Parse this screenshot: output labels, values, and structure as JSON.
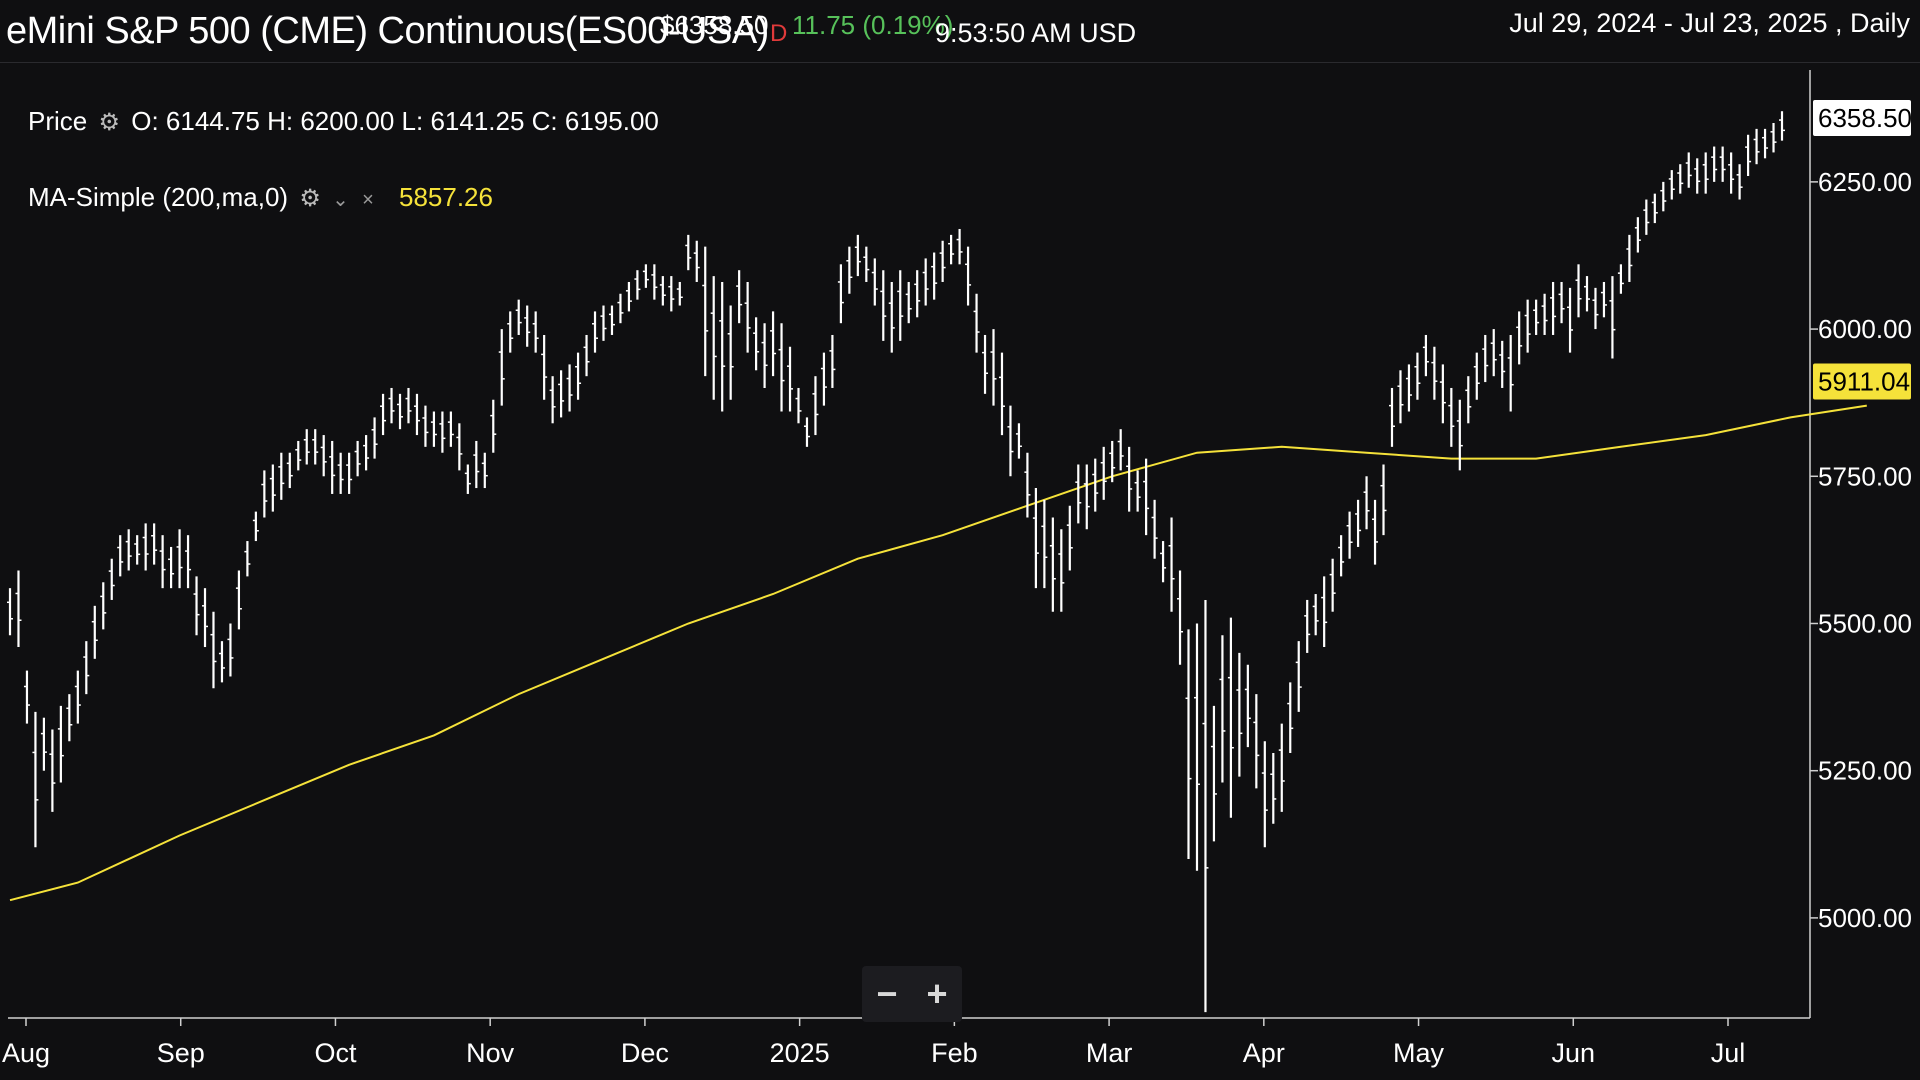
{
  "header": {
    "title": "eMini S&P 500 (CME) Continuous(ES00-USA)",
    "last_price": "$6358.50",
    "flag": "D",
    "change": "11.75 (0.19%)",
    "time": "9:53:50 AM USD",
    "date_range": "Jul 29, 2024 - Jul 23, 2025 , Daily"
  },
  "legend": {
    "price_label": "Price",
    "ohlc": "O: 6144.75 H: 6200.00 L: 6141.25 C: 6195.00",
    "ma_label": "MA-Simple (200,ma,0)",
    "ma_value": "5857.26",
    "ma_arrow": "⌄",
    "ma_close": "×"
  },
  "icons": {
    "gear": "gear-icon",
    "minus": "zoom-out-icon",
    "plus": "zoom-in-icon"
  },
  "zoom": {
    "minus": "−",
    "plus": "+"
  },
  "colors": {
    "background": "#0f0f11",
    "bars": "#ffffff",
    "ma": "#f5e23a",
    "up": "#57c15a",
    "down": "#e03a3a"
  },
  "chart_data": {
    "type": "ohlc",
    "title": "eMini S&P 500 (CME) Continuous(ES00-USA)",
    "frequency": "Daily",
    "x_labels": [
      "Aug",
      "Sep",
      "Oct",
      "Nov",
      "Dec",
      "2025",
      "Feb",
      "Mar",
      "Apr",
      "May",
      "Jun",
      "Jul"
    ],
    "y_ticks": [
      5000,
      5250,
      5500,
      5750,
      6000,
      6250
    ],
    "y_tick_labels": [
      "5000.00",
      "5250.00",
      "5500.00",
      "5750.00",
      "6000.00",
      "6250.00"
    ],
    "ylim": [
      4830,
      6440
    ],
    "last_price_label": "6358.50",
    "ma_price_label": "5911.04",
    "bars_high_low": [
      [
        5560,
        5480
      ],
      [
        5590,
        5460
      ],
      [
        5420,
        5330
      ],
      [
        5350,
        5120
      ],
      [
        5340,
        5250
      ],
      [
        5320,
        5180
      ],
      [
        5360,
        5230
      ],
      [
        5380,
        5300
      ],
      [
        5420,
        5330
      ],
      [
        5470,
        5380
      ],
      [
        5530,
        5440
      ],
      [
        5570,
        5490
      ],
      [
        5610,
        5540
      ],
      [
        5650,
        5580
      ],
      [
        5660,
        5590
      ],
      [
        5650,
        5600
      ],
      [
        5670,
        5590
      ],
      [
        5670,
        5600
      ],
      [
        5650,
        5560
      ],
      [
        5630,
        5560
      ],
      [
        5660,
        5560
      ],
      [
        5650,
        5560
      ],
      [
        5580,
        5480
      ],
      [
        5560,
        5460
      ],
      [
        5520,
        5390
      ],
      [
        5470,
        5400
      ],
      [
        5500,
        5410
      ],
      [
        5590,
        5490
      ],
      [
        5640,
        5580
      ],
      [
        5690,
        5640
      ],
      [
        5760,
        5680
      ],
      [
        5770,
        5690
      ],
      [
        5790,
        5710
      ],
      [
        5790,
        5730
      ],
      [
        5810,
        5760
      ],
      [
        5830,
        5770
      ],
      [
        5830,
        5770
      ],
      [
        5820,
        5750
      ],
      [
        5810,
        5720
      ],
      [
        5790,
        5720
      ],
      [
        5790,
        5720
      ],
      [
        5810,
        5750
      ],
      [
        5820,
        5760
      ],
      [
        5850,
        5780
      ],
      [
        5890,
        5820
      ],
      [
        5900,
        5840
      ],
      [
        5890,
        5830
      ],
      [
        5900,
        5840
      ],
      [
        5890,
        5820
      ],
      [
        5870,
        5800
      ],
      [
        5860,
        5800
      ],
      [
        5860,
        5790
      ],
      [
        5860,
        5800
      ],
      [
        5840,
        5760
      ],
      [
        5770,
        5720
      ],
      [
        5810,
        5730
      ],
      [
        5790,
        5730
      ],
      [
        5880,
        5790
      ],
      [
        6000,
        5870
      ],
      [
        6030,
        5960
      ],
      [
        6050,
        5990
      ],
      [
        6040,
        5970
      ],
      [
        6030,
        5960
      ],
      [
        5990,
        5880
      ],
      [
        5920,
        5840
      ],
      [
        5930,
        5850
      ],
      [
        5940,
        5860
      ],
      [
        5960,
        5880
      ],
      [
        5990,
        5920
      ],
      [
        6030,
        5960
      ],
      [
        6040,
        5980
      ],
      [
        6040,
        5990
      ],
      [
        6060,
        6010
      ],
      [
        6080,
        6030
      ],
      [
        6100,
        6050
      ],
      [
        6110,
        6070
      ],
      [
        6110,
        6050
      ],
      [
        6090,
        6040
      ],
      [
        6090,
        6030
      ],
      [
        6080,
        6040
      ],
      [
        6160,
        6100
      ],
      [
        6150,
        6080
      ],
      [
        6140,
        5920
      ],
      [
        6090,
        5880
      ],
      [
        6080,
        5860
      ],
      [
        6040,
        5880
      ],
      [
        6100,
        6010
      ],
      [
        6080,
        5960
      ],
      [
        6020,
        5930
      ],
      [
        6010,
        5900
      ],
      [
        6030,
        5920
      ],
      [
        6010,
        5860
      ],
      [
        5970,
        5860
      ],
      [
        5900,
        5840
      ],
      [
        5850,
        5800
      ],
      [
        5920,
        5820
      ],
      [
        5960,
        5870
      ],
      [
        5990,
        5900
      ],
      [
        6110,
        6010
      ],
      [
        6140,
        6060
      ],
      [
        6160,
        6090
      ],
      [
        6140,
        6080
      ],
      [
        6120,
        6040
      ],
      [
        6100,
        5980
      ],
      [
        6080,
        5960
      ],
      [
        6100,
        5980
      ],
      [
        6080,
        6010
      ],
      [
        6100,
        6020
      ],
      [
        6120,
        6040
      ],
      [
        6130,
        6050
      ],
      [
        6150,
        6080
      ],
      [
        6160,
        6110
      ],
      [
        6170,
        6110
      ],
      [
        6140,
        6040
      ],
      [
        6060,
        5960
      ],
      [
        5990,
        5890
      ],
      [
        6000,
        5870
      ],
      [
        5960,
        5820
      ],
      [
        5870,
        5750
      ],
      [
        5840,
        5780
      ],
      [
        5790,
        5680
      ],
      [
        5730,
        5560
      ],
      [
        5710,
        5560
      ],
      [
        5680,
        5520
      ],
      [
        5660,
        5520
      ],
      [
        5700,
        5590
      ],
      [
        5770,
        5670
      ],
      [
        5770,
        5660
      ],
      [
        5780,
        5690
      ],
      [
        5800,
        5710
      ],
      [
        5810,
        5740
      ],
      [
        5830,
        5760
      ],
      [
        5800,
        5690
      ],
      [
        5760,
        5690
      ],
      [
        5780,
        5650
      ],
      [
        5710,
        5610
      ],
      [
        5640,
        5570
      ],
      [
        5680,
        5520
      ],
      [
        5590,
        5430
      ],
      [
        5490,
        5100
      ],
      [
        5500,
        5080
      ],
      [
        5540,
        4840
      ],
      [
        5360,
        5130
      ],
      [
        5480,
        5230
      ],
      [
        5510,
        5170
      ],
      [
        5450,
        5240
      ],
      [
        5430,
        5290
      ],
      [
        5380,
        5220
      ],
      [
        5300,
        5120
      ],
      [
        5280,
        5160
      ],
      [
        5330,
        5180
      ],
      [
        5400,
        5280
      ],
      [
        5470,
        5350
      ],
      [
        5540,
        5450
      ],
      [
        5550,
        5480
      ],
      [
        5580,
        5460
      ],
      [
        5610,
        5520
      ],
      [
        5650,
        5580
      ],
      [
        5690,
        5610
      ],
      [
        5710,
        5630
      ],
      [
        5750,
        5660
      ],
      [
        5710,
        5600
      ],
      [
        5770,
        5650
      ],
      [
        5900,
        5800
      ],
      [
        5930,
        5840
      ],
      [
        5940,
        5860
      ],
      [
        5960,
        5880
      ],
      [
        5990,
        5920
      ],
      [
        5970,
        5880
      ],
      [
        5940,
        5840
      ],
      [
        5900,
        5800
      ],
      [
        5880,
        5760
      ],
      [
        5920,
        5840
      ],
      [
        5960,
        5880
      ],
      [
        5990,
        5910
      ],
      [
        6000,
        5920
      ],
      [
        5980,
        5900
      ],
      [
        5990,
        5860
      ],
      [
        6030,
        5940
      ],
      [
        6050,
        5960
      ],
      [
        6050,
        5990
      ],
      [
        6060,
        5990
      ],
      [
        6080,
        5990
      ],
      [
        6080,
        6010
      ],
      [
        6070,
        5960
      ],
      [
        6110,
        6020
      ],
      [
        6090,
        6030
      ],
      [
        6070,
        6000
      ],
      [
        6080,
        6020
      ],
      [
        6090,
        5950
      ],
      [
        6110,
        6060
      ],
      [
        6160,
        6080
      ],
      [
        6190,
        6130
      ],
      [
        6220,
        6160
      ],
      [
        6230,
        6180
      ],
      [
        6250,
        6200
      ],
      [
        6270,
        6220
      ],
      [
        6280,
        6230
      ],
      [
        6300,
        6240
      ],
      [
        6290,
        6230
      ],
      [
        6300,
        6230
      ],
      [
        6310,
        6250
      ],
      [
        6310,
        6250
      ],
      [
        6300,
        6230
      ],
      [
        6280,
        6220
      ],
      [
        6330,
        6260
      ],
      [
        6340,
        6280
      ],
      [
        6340,
        6290
      ],
      [
        6350,
        6300
      ],
      [
        6370,
        6320
      ]
    ],
    "ma_200": [
      [
        0,
        5030
      ],
      [
        8,
        5060
      ],
      [
        20,
        5140
      ],
      [
        30,
        5200
      ],
      [
        40,
        5260
      ],
      [
        50,
        5310
      ],
      [
        60,
        5380
      ],
      [
        70,
        5440
      ],
      [
        80,
        5500
      ],
      [
        90,
        5550
      ],
      [
        100,
        5610
      ],
      [
        110,
        5650
      ],
      [
        120,
        5700
      ],
      [
        130,
        5750
      ],
      [
        140,
        5790
      ],
      [
        150,
        5800
      ],
      [
        160,
        5790
      ],
      [
        170,
        5780
      ],
      [
        180,
        5780
      ],
      [
        190,
        5800
      ],
      [
        200,
        5820
      ],
      [
        210,
        5850
      ],
      [
        219,
        5870
      ]
    ]
  }
}
